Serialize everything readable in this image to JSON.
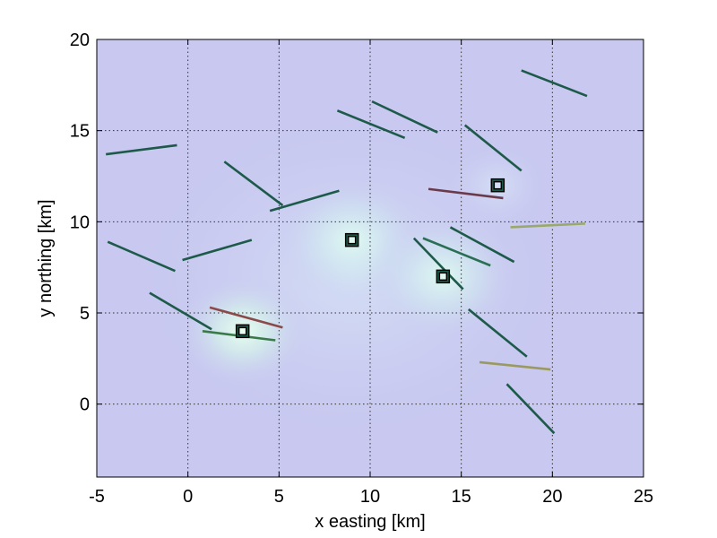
{
  "chart_data": {
    "type": "scatter",
    "title": "",
    "xlabel": "x easting [km]",
    "ylabel": "y northing [km]",
    "xlim": [
      -5,
      25
    ],
    "ylim": [
      -4,
      20
    ],
    "xticks": [
      -5,
      0,
      5,
      10,
      15,
      20,
      25
    ],
    "yticks": [
      0,
      5,
      10,
      15,
      20
    ],
    "grid": true,
    "background_color": "#c8c8f0",
    "stations": [
      {
        "x": 3,
        "y": 4
      },
      {
        "x": 9,
        "y": 9
      },
      {
        "x": 14,
        "y": 7
      },
      {
        "x": 17,
        "y": 12
      }
    ],
    "segments": [
      {
        "x1": -4.5,
        "y1": 13.7,
        "x2": -0.6,
        "y2": 14.2,
        "color": "#1d5a4a"
      },
      {
        "x1": 2.0,
        "y1": 13.3,
        "x2": 5.2,
        "y2": 10.9,
        "color": "#1d5a4a"
      },
      {
        "x1": 4.5,
        "y1": 10.6,
        "x2": 8.3,
        "y2": 11.7,
        "color": "#1d5a4a"
      },
      {
        "x1": 8.2,
        "y1": 16.1,
        "x2": 11.9,
        "y2": 14.6,
        "color": "#1d5a4a"
      },
      {
        "x1": 10.1,
        "y1": 16.6,
        "x2": 13.7,
        "y2": 14.9,
        "color": "#1d5a4a"
      },
      {
        "x1": 18.3,
        "y1": 18.3,
        "x2": 21.9,
        "y2": 16.9,
        "color": "#1d5a4a"
      },
      {
        "x1": 15.2,
        "y1": 15.3,
        "x2": 18.3,
        "y2": 12.8,
        "color": "#1d5a4a"
      },
      {
        "x1": -4.4,
        "y1": 8.9,
        "x2": -0.7,
        "y2": 7.3,
        "color": "#1d5a4a"
      },
      {
        "x1": -0.3,
        "y1": 7.9,
        "x2": 3.5,
        "y2": 9.0,
        "color": "#1d5a4a"
      },
      {
        "x1": -2.1,
        "y1": 6.1,
        "x2": 1.3,
        "y2": 4.1,
        "color": "#1d5a4a"
      },
      {
        "x1": 12.4,
        "y1": 9.1,
        "x2": 15.1,
        "y2": 6.3,
        "color": "#1d5a4a"
      },
      {
        "x1": 12.9,
        "y1": 9.1,
        "x2": 16.6,
        "y2": 7.6,
        "color": "#2a6e54"
      },
      {
        "x1": 14.4,
        "y1": 9.7,
        "x2": 17.9,
        "y2": 7.8,
        "color": "#1d5a4a"
      },
      {
        "x1": 15.4,
        "y1": 5.2,
        "x2": 18.6,
        "y2": 2.6,
        "color": "#1d5a4a"
      },
      {
        "x1": 17.5,
        "y1": 1.1,
        "x2": 20.1,
        "y2": -1.6,
        "color": "#1d5a4a"
      },
      {
        "x1": 13.2,
        "y1": 11.8,
        "x2": 17.3,
        "y2": 11.3,
        "color": "#6b3a4a"
      },
      {
        "x1": 17.7,
        "y1": 9.7,
        "x2": 21.8,
        "y2": 9.9,
        "color": "#9aa86a"
      },
      {
        "x1": 1.2,
        "y1": 5.3,
        "x2": 5.2,
        "y2": 4.2,
        "color": "#8a4a4a"
      },
      {
        "x1": 0.8,
        "y1": 4.0,
        "x2": 4.8,
        "y2": 3.5,
        "color": "#3a7a4a"
      },
      {
        "x1": 16.0,
        "y1": 2.3,
        "x2": 19.9,
        "y2": 1.9,
        "color": "#9a9a60"
      }
    ]
  }
}
